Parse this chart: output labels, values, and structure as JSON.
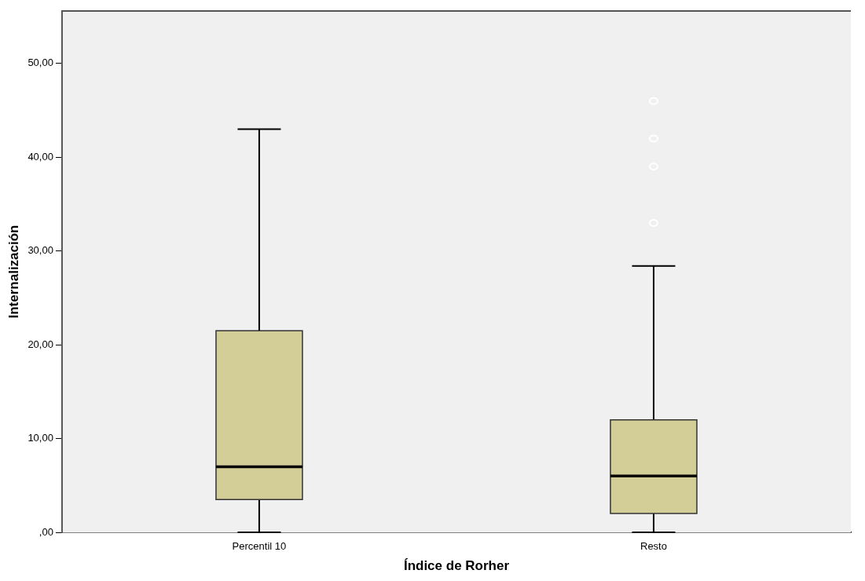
{
  "chart_data": {
    "type": "box",
    "xlabel": "Índice de Rorher",
    "ylabel": "Internalización",
    "categories": [
      "Percentil 10",
      "Resto"
    ],
    "series": [
      {
        "color": "#d3cd97",
        "boxes": [
          {
            "low": 0,
            "q1": 3.5,
            "median": 7,
            "q3": 21.5,
            "high": 43
          },
          {
            "low": 0,
            "q1": 2,
            "median": 6,
            "q3": 12,
            "high": 28.4,
            "outliers": [
              33,
              39,
              42,
              46
            ]
          }
        ]
      }
    ],
    "ylim": [
      0,
      55.6
    ],
    "yticks": [
      {
        "value": 0,
        "label": ",00"
      },
      {
        "value": 10,
        "label": "10,00"
      },
      {
        "value": 20,
        "label": "20,00"
      },
      {
        "value": 30,
        "label": "30,00"
      },
      {
        "value": 40,
        "label": "40,00"
      },
      {
        "value": 50,
        "label": "50,00"
      }
    ],
    "grid": false,
    "legend": false
  }
}
